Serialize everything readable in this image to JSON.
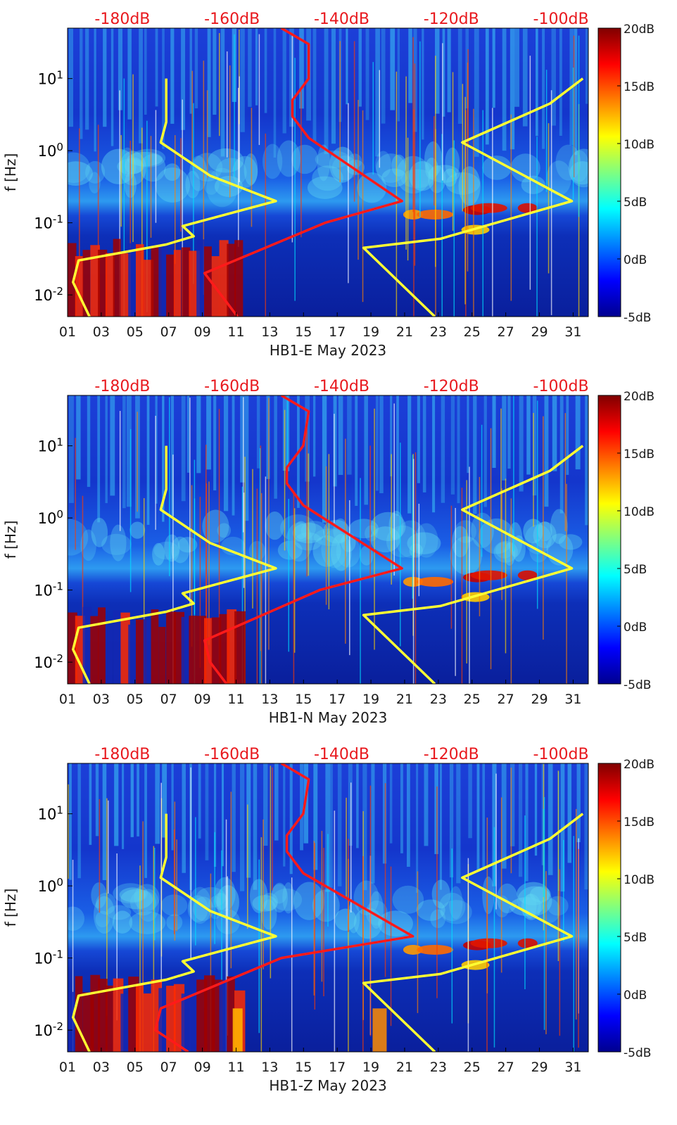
{
  "figure": {
    "colorbar_ticks": [
      "20dB",
      "15dB",
      "10dB",
      "5dB",
      "0dB",
      "-5dB"
    ],
    "top_ticks": [
      "-180dB",
      "-160dB",
      "-140dB",
      "-120dB",
      "-100dB"
    ],
    "colors": {
      "top_axis_text": "#e8191e",
      "model_curve": "#ffff33",
      "median_curve": "#ff1a1a",
      "axis": "#000000"
    }
  },
  "chart_data": [
    {
      "type": "heatmap",
      "xlabel": "HB1-E May 2023",
      "ylabel": "f [Hz]",
      "y_scale": "log",
      "x_ticks": [
        "01",
        "03",
        "05",
        "07",
        "09",
        "11",
        "13",
        "15",
        "17",
        "19",
        "21",
        "23",
        "25",
        "27",
        "29",
        "31"
      ],
      "y_ticks": [
        "10-2",
        "10-1",
        "100",
        "101"
      ],
      "x_range_days": [
        1,
        31.9
      ],
      "y_range_hz": [
        0.005,
        50
      ],
      "colorbar": {
        "min_db": -5,
        "max_db": 20,
        "colormap": "jet",
        "ticks": [
          "-5dB",
          "0dB",
          "5dB",
          "10dB",
          "15dB",
          "20dB"
        ]
      },
      "top_axis": {
        "ticks": [
          "-180dB",
          "-160dB",
          "-140dB",
          "-120dB",
          "-100dB"
        ],
        "range_db": [
          -190,
          -95
        ]
      },
      "noise_model_curves_db": [
        {
          "color": "yellow",
          "points": [
            [
              0.005,
              -186
            ],
            [
              0.015,
              -189
            ],
            [
              0.03,
              -188
            ],
            [
              0.05,
              -172
            ],
            [
              0.065,
              -167
            ],
            [
              0.09,
              -169
            ],
            [
              0.2,
              -152
            ],
            [
              0.45,
              -164
            ],
            [
              1.3,
              -173
            ],
            [
              2.5,
              -172
            ],
            [
              10,
              -172
            ]
          ]
        },
        {
          "color": "yellow",
          "points": [
            [
              0.005,
              -123
            ],
            [
              0.045,
              -136
            ],
            [
              0.06,
              -122
            ],
            [
              0.2,
              -98
            ],
            [
              1.3,
              -118
            ],
            [
              4.5,
              -102
            ],
            [
              10,
              -96
            ]
          ]
        }
      ],
      "median_curve_db": [
        [
          0.005,
          -159
        ],
        [
          0.01,
          -162
        ],
        [
          0.02,
          -165
        ],
        [
          0.1,
          -143
        ],
        [
          0.2,
          -129
        ],
        [
          1.5,
          -146
        ],
        [
          3,
          -149
        ],
        [
          5,
          -149
        ],
        [
          10,
          -146
        ],
        [
          30,
          -146
        ],
        [
          50,
          -151
        ]
      ]
    },
    {
      "type": "heatmap",
      "xlabel": "HB1-N May 2023",
      "ylabel": "f [Hz]",
      "y_scale": "log",
      "x_ticks": [
        "01",
        "03",
        "05",
        "07",
        "09",
        "11",
        "13",
        "15",
        "17",
        "19",
        "21",
        "23",
        "25",
        "27",
        "29",
        "31"
      ],
      "y_ticks": [
        "10-2",
        "10-1",
        "100",
        "101"
      ],
      "x_range_days": [
        1,
        31.9
      ],
      "y_range_hz": [
        0.005,
        50
      ],
      "colorbar": {
        "min_db": -5,
        "max_db": 20,
        "colormap": "jet",
        "ticks": [
          "-5dB",
          "0dB",
          "5dB",
          "10dB",
          "15dB",
          "20dB"
        ]
      },
      "top_axis": {
        "ticks": [
          "-180dB",
          "-160dB",
          "-140dB",
          "-120dB",
          "-100dB"
        ],
        "range_db": [
          -190,
          -95
        ]
      },
      "noise_model_curves_db": [
        {
          "color": "yellow",
          "points": [
            [
              0.005,
              -186
            ],
            [
              0.015,
              -189
            ],
            [
              0.03,
              -188
            ],
            [
              0.05,
              -172
            ],
            [
              0.065,
              -167
            ],
            [
              0.09,
              -169
            ],
            [
              0.2,
              -152
            ],
            [
              0.45,
              -164
            ],
            [
              1.3,
              -173
            ],
            [
              2.5,
              -172
            ],
            [
              10,
              -172
            ]
          ]
        },
        {
          "color": "yellow",
          "points": [
            [
              0.005,
              -123
            ],
            [
              0.045,
              -136
            ],
            [
              0.06,
              -122
            ],
            [
              0.2,
              -98
            ],
            [
              1.3,
              -118
            ],
            [
              4.5,
              -102
            ],
            [
              10,
              -96
            ]
          ]
        }
      ],
      "median_curve_db": [
        [
          0.005,
          -161
        ],
        [
          0.01,
          -164
        ],
        [
          0.02,
          -165
        ],
        [
          0.1,
          -144
        ],
        [
          0.2,
          -129
        ],
        [
          1.5,
          -147
        ],
        [
          3,
          -150
        ],
        [
          5,
          -150
        ],
        [
          10,
          -147
        ],
        [
          30,
          -146
        ],
        [
          50,
          -151
        ]
      ]
    },
    {
      "type": "heatmap",
      "xlabel": "HB1-Z May 2023",
      "ylabel": "f [Hz]",
      "y_scale": "log",
      "x_ticks": [
        "01",
        "03",
        "05",
        "07",
        "09",
        "11",
        "13",
        "15",
        "17",
        "19",
        "21",
        "23",
        "25",
        "27",
        "29",
        "31"
      ],
      "y_ticks": [
        "10-2",
        "10-1",
        "100",
        "101"
      ],
      "x_range_days": [
        1,
        31.9
      ],
      "y_range_hz": [
        0.005,
        50
      ],
      "colorbar": {
        "min_db": -5,
        "max_db": 20,
        "colormap": "jet",
        "ticks": [
          "-5dB",
          "0dB",
          "5dB",
          "10dB",
          "15dB",
          "20dB"
        ]
      },
      "top_axis": {
        "ticks": [
          "-180dB",
          "-160dB",
          "-140dB",
          "-120dB",
          "-100dB"
        ],
        "range_db": [
          -190,
          -95
        ]
      },
      "noise_model_curves_db": [
        {
          "color": "yellow",
          "points": [
            [
              0.005,
              -186
            ],
            [
              0.015,
              -189
            ],
            [
              0.03,
              -188
            ],
            [
              0.05,
              -172
            ],
            [
              0.065,
              -167
            ],
            [
              0.09,
              -169
            ],
            [
              0.2,
              -152
            ],
            [
              0.45,
              -164
            ],
            [
              1.3,
              -173
            ],
            [
              2.5,
              -172
            ],
            [
              10,
              -172
            ]
          ]
        },
        {
          "color": "yellow",
          "points": [
            [
              0.005,
              -123
            ],
            [
              0.045,
              -136
            ],
            [
              0.06,
              -122
            ],
            [
              0.2,
              -98
            ],
            [
              1.3,
              -118
            ],
            [
              4.5,
              -102
            ],
            [
              10,
              -96
            ]
          ]
        }
      ],
      "median_curve_db": [
        [
          0.005,
          -168
        ],
        [
          0.01,
          -174
        ],
        [
          0.02,
          -173
        ],
        [
          0.1,
          -151
        ],
        [
          0.2,
          -127
        ],
        [
          1.5,
          -147
        ],
        [
          3,
          -150
        ],
        [
          5,
          -150
        ],
        [
          10,
          -147
        ],
        [
          30,
          -146
        ],
        [
          50,
          -151
        ]
      ]
    }
  ]
}
